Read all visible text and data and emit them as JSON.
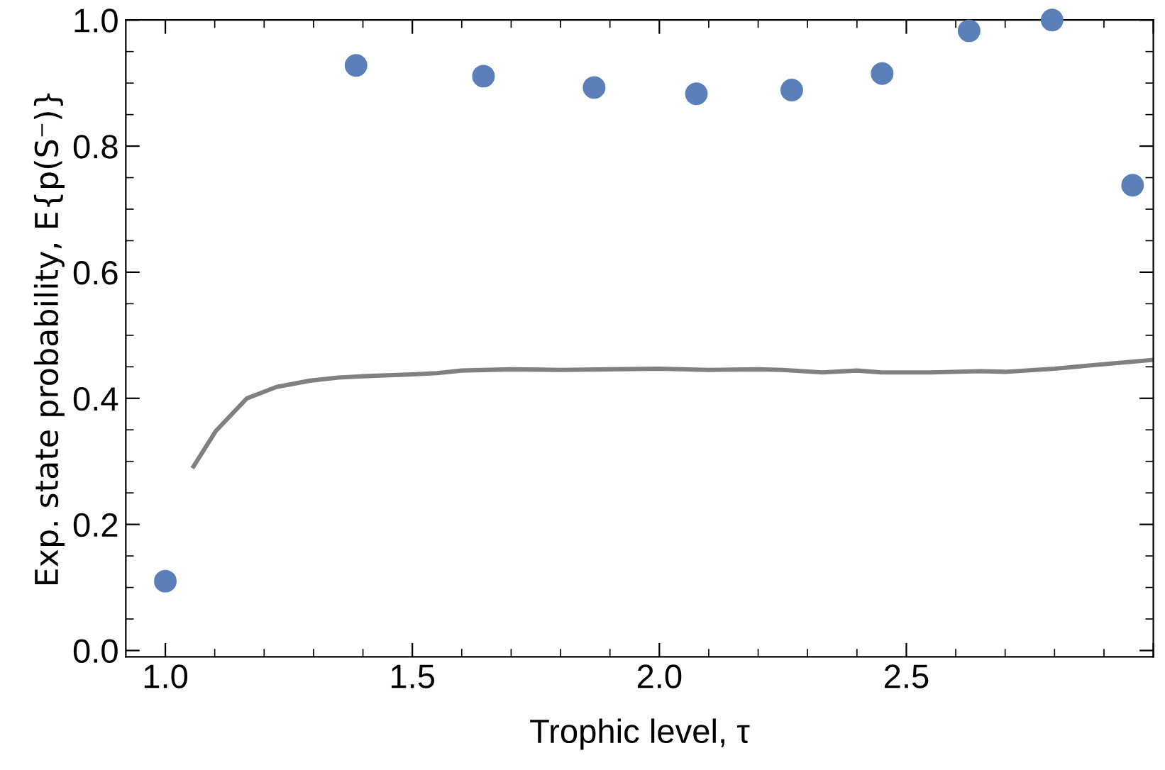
{
  "chart_data": {
    "type": "scatter",
    "xlabel": "Trophic level, τ",
    "ylabel": "Exp. state probability, E{p(S⁻)}",
    "xlim": [
      0.92,
      3.0
    ],
    "ylim": [
      -0.01,
      1.0
    ],
    "xticks": [
      {
        "value": 1.0,
        "label": "1.0"
      },
      1.5,
      {
        "value": 2.0,
        "label": "2.0"
      },
      2.5,
      {
        "value": 3.0,
        "label": null
      }
    ],
    "yticks": [
      {
        "value": 0.0,
        "label": "0.0"
      },
      0.2,
      0.4,
      0.6,
      0.8,
      {
        "value": 1.0,
        "label": "1.0"
      }
    ],
    "grid": false,
    "legend": false,
    "series": [
      {
        "color": "#5b7fb8",
        "marker": "circle",
        "x": [
          1.0,
          1.386,
          1.644,
          1.868,
          2.075,
          2.268,
          2.451,
          2.627,
          2.795,
          2.958
        ],
        "values": [
          0.11,
          0.928,
          0.911,
          0.893,
          0.883,
          0.889,
          0.915,
          0.983,
          1.0,
          0.738
        ]
      },
      {
        "type": "line",
        "color": "#808080",
        "line_style": "solid",
        "x": [
          1.057,
          1.102,
          1.165,
          1.225,
          1.293,
          1.35,
          1.4,
          1.5,
          1.55,
          1.6,
          1.7,
          1.8,
          1.9,
          2.0,
          2.1,
          2.2,
          2.25,
          2.33,
          2.4,
          2.45,
          2.55,
          2.65,
          2.7,
          2.8,
          2.87,
          3.0
        ],
        "values": [
          0.292,
          0.348,
          0.4,
          0.418,
          0.428,
          0.433,
          0.435,
          0.438,
          0.44,
          0.444,
          0.446,
          0.445,
          0.446,
          0.447,
          0.445,
          0.446,
          0.445,
          0.441,
          0.444,
          0.441,
          0.441,
          0.443,
          0.442,
          0.447,
          0.452,
          0.461
        ]
      }
    ]
  }
}
